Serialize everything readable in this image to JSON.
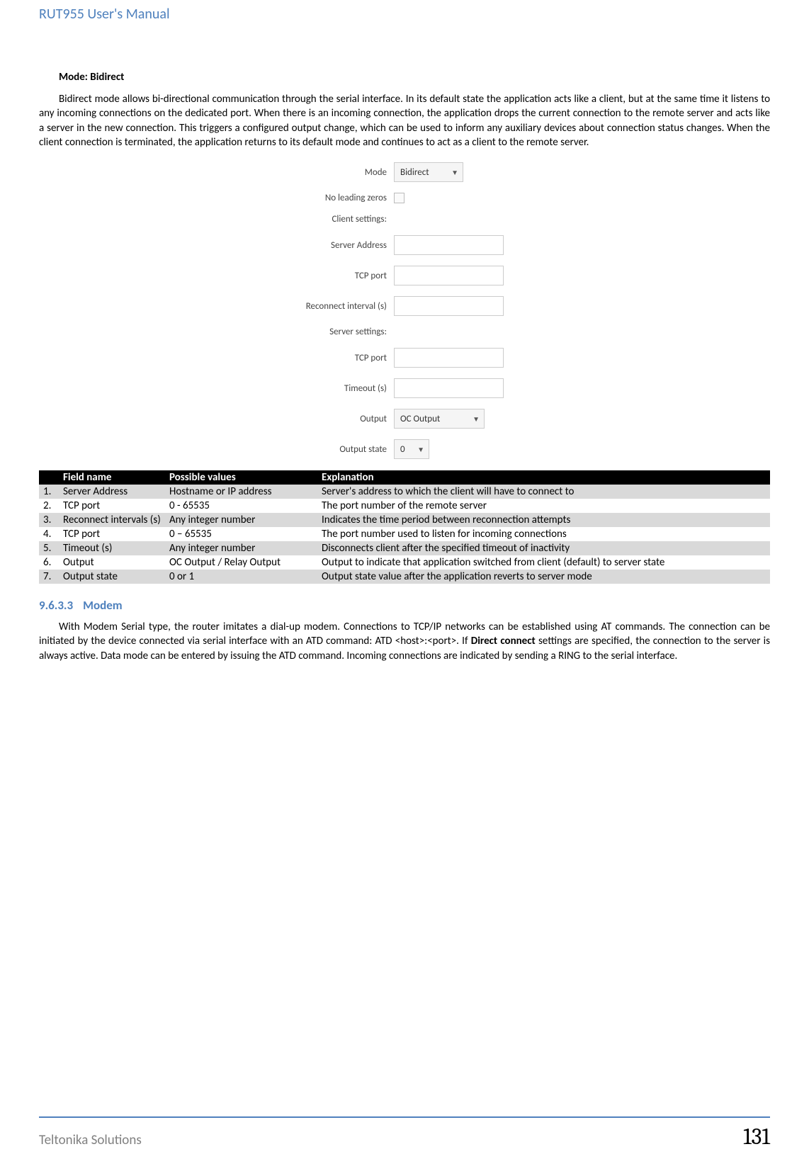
{
  "header": {
    "title": "RUT955 User's Manual"
  },
  "section": {
    "heading": "Mode: Bidirect",
    "paragraph": "Bidirect mode allows bi-directional communication through the serial interface. In its default state the application acts like a client, but at the same time it listens to any incoming connections on the dedicated port. When there is an incoming connection, the application drops the current connection to the remote server and acts like a server in the new connection. This triggers a configured output change, which can be used to inform any auxiliary devices about connection status changes. When the client connection is terminated, the application returns to its default mode and continues to act as a client to the remote server."
  },
  "form": {
    "mode_label": "Mode",
    "mode_value": "Bidirect",
    "nlz_label": "No leading zeros",
    "client_settings": "Client settings:",
    "server_address": "Server Address",
    "tcp_port": "TCP port",
    "reconnect": "Reconnect interval (s)",
    "server_settings": "Server settings:",
    "tcp_port2": "TCP port",
    "timeout": "Timeout (s)",
    "output": "Output",
    "output_value": "OC Output",
    "output_state": "Output state",
    "output_state_value": "0"
  },
  "table": {
    "headers": {
      "field": "Field name",
      "possible": "Possible values",
      "explanation": "Explanation"
    },
    "rows": [
      {
        "n": "1.",
        "field": "Server Address",
        "possible": "Hostname or IP address",
        "explanation": "Server's address to which the client will have to connect to"
      },
      {
        "n": "2.",
        "field": "TCP port",
        "possible": "0 - 65535",
        "explanation": "The port number of the remote server"
      },
      {
        "n": "3.",
        "field": "Reconnect intervals (s)",
        "possible": "Any integer number",
        "explanation": "Indicates the time period between reconnection attempts"
      },
      {
        "n": "4.",
        "field": "TCP port",
        "possible": "0 – 65535",
        "explanation": "The port number used to listen for incoming connections"
      },
      {
        "n": "5.",
        "field": "Timeout (s)",
        "possible": "Any integer number",
        "explanation": "Disconnects client after the specified timeout of inactivity"
      },
      {
        "n": "6.",
        "field": "Output",
        "possible": "OC Output / Relay Output",
        "explanation": "Output  to indicate that application switched from client (default) to server state"
      },
      {
        "n": "7.",
        "field": "Output state",
        "possible": "0 or 1",
        "explanation": "Output state value after the application reverts to server mode"
      }
    ]
  },
  "subsection": {
    "num": "9.6.3.3",
    "title": "Modem",
    "paragraph": "With Modem Serial type, the router imitates a dial-up modem. Connections to TCP/IP networks can be established using AT commands. The connection can be initiated by the device connected via serial interface with an ATD command: ATD <host>:<port>. If Direct connect settings are specified, the connection to the server is always active. Data mode can be entered by issuing the ATD command. Incoming connections are indicated by sending a RING to the serial interface."
  },
  "footer": {
    "left": "Teltonika Solutions",
    "page": "131"
  }
}
